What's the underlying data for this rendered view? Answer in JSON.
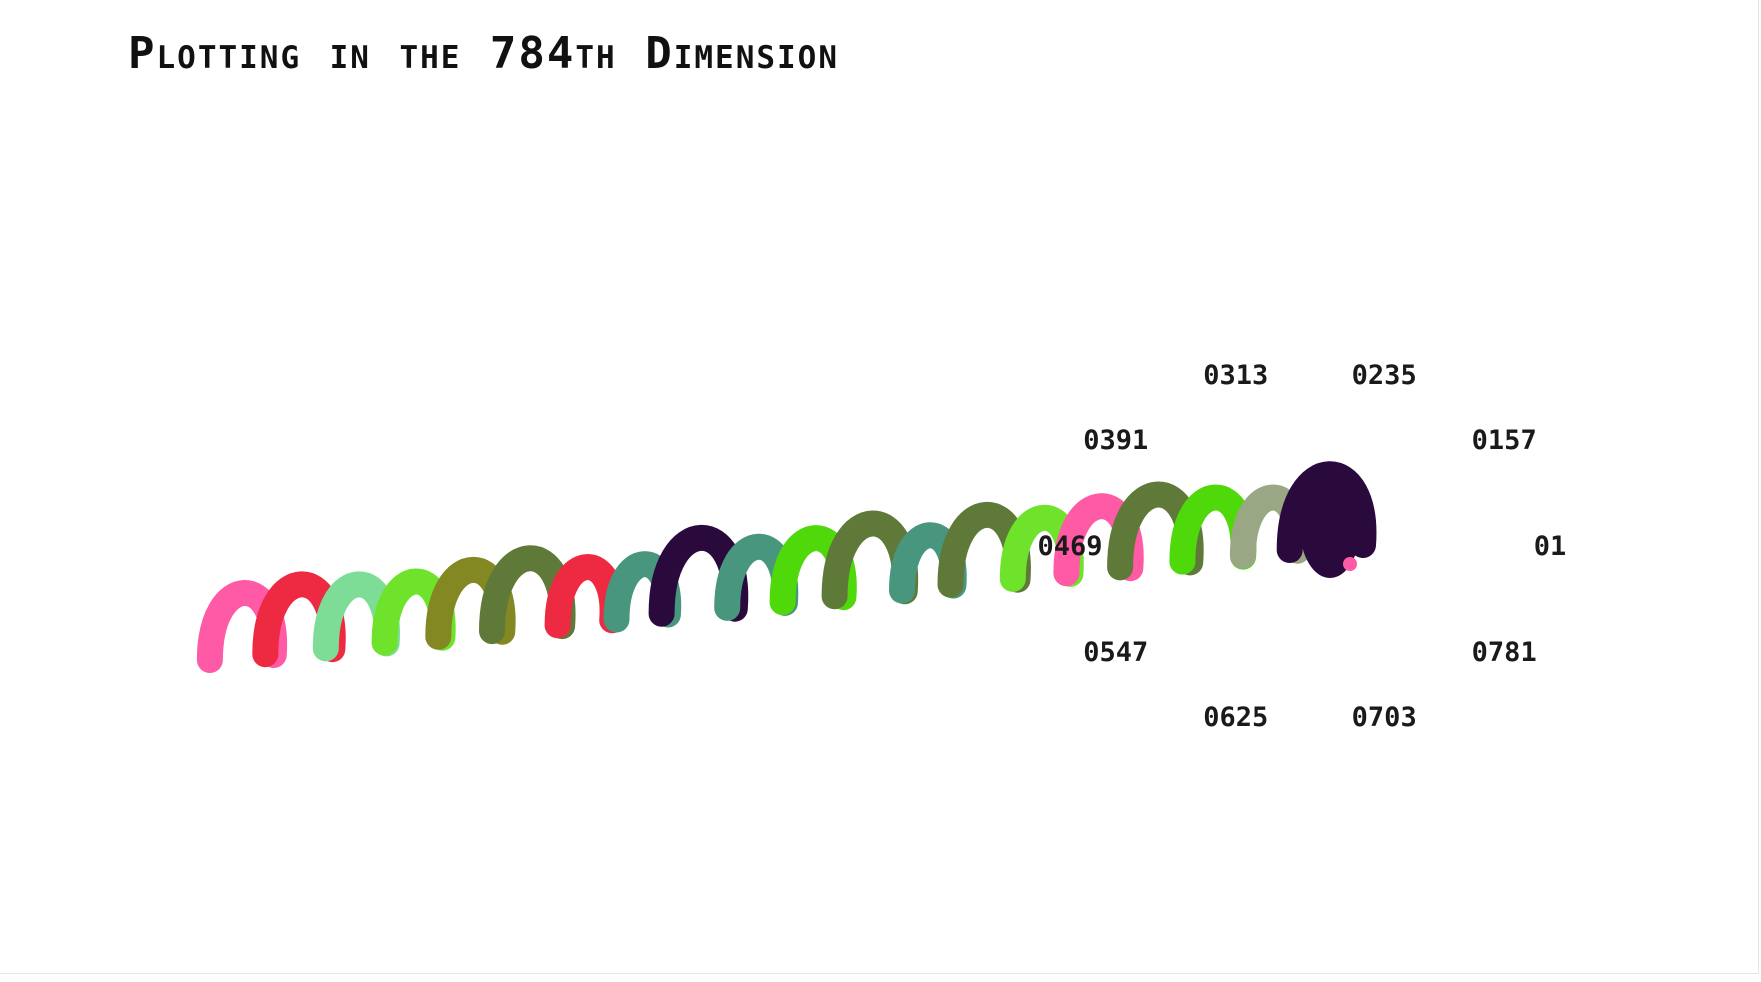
{
  "chart_data": {
    "type": "line",
    "title": "Plotting in the 784th Dimension",
    "radial_axis": {
      "tick_labels": [
        "0.1",
        "0.157",
        "0.235",
        "0.313",
        "0.391",
        "0.469",
        "0.547",
        "0.625",
        "0.703",
        "0.781"
      ],
      "display_labels": [
        "01",
        "0157",
        "0235",
        "0313",
        "0391",
        "0469",
        "0547",
        "0625",
        "0703",
        "0781"
      ]
    },
    "series": [
      {
        "color": "#ff5aa5",
        "values": [
          0.469,
          0.547,
          0.625
        ]
      },
      {
        "color": "#ee2a42",
        "values": [
          0.547,
          0.625,
          0.703
        ]
      },
      {
        "color": "#7ddc96",
        "values": [
          0.391,
          0.469,
          0.547
        ]
      },
      {
        "color": "#6fe22c",
        "values": [
          0.313,
          0.391,
          0.469
        ]
      },
      {
        "color": "#838823",
        "values": [
          0.469,
          0.547,
          0.625
        ]
      },
      {
        "color": "#5f7a38",
        "values": [
          0.625,
          0.703,
          0.781
        ]
      },
      {
        "color": "#ee2a42",
        "values": [
          0.235,
          0.313,
          0.391
        ]
      },
      {
        "color": "#48967e",
        "values": [
          0.157,
          0.235,
          0.313
        ]
      },
      {
        "color": "#2a0a3d",
        "values": [
          0.703,
          0.781,
          0.1
        ]
      },
      {
        "color": "#48967e",
        "values": [
          0.313,
          0.391,
          0.469
        ]
      },
      {
        "color": "#4fd80a",
        "values": [
          0.391,
          0.469,
          0.547
        ]
      },
      {
        "color": "#5f7a38",
        "values": [
          0.625,
          0.703,
          0.781
        ]
      },
      {
        "color": "#48967e",
        "values": [
          0.157,
          0.235,
          0.313
        ]
      },
      {
        "color": "#5f7a38",
        "values": [
          0.547,
          0.625,
          0.703
        ]
      },
      {
        "color": "#6fe22c",
        "values": [
          0.313,
          0.391,
          0.469
        ]
      },
      {
        "color": "#ff5aa5",
        "values": [
          0.469,
          0.547,
          0.625
        ]
      },
      {
        "color": "#5f7a38",
        "values": [
          0.625,
          0.703,
          0.781
        ]
      },
      {
        "color": "#4fd80a",
        "values": [
          0.391,
          0.469,
          0.547
        ]
      },
      {
        "color": "#9aa784",
        "values": [
          0.235,
          0.313,
          0.391
        ]
      },
      {
        "color": "#2a0a3d",
        "values": [
          0.703,
          0.781,
          0.1
        ]
      }
    ],
    "marker": {
      "color": "#ff5aa5"
    }
  }
}
